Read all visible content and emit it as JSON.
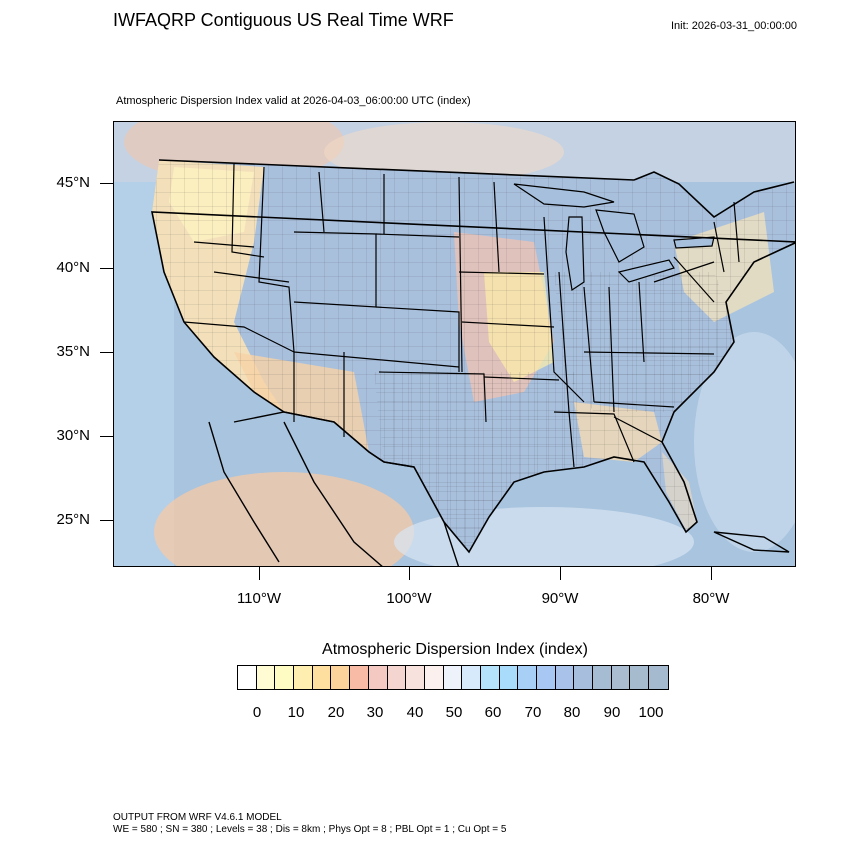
{
  "header": {
    "title": "IWFAQRP Contiguous US Real Time WRF",
    "init": "Init: 2026-03-31_00:00:00",
    "subtitle": "Atmospheric Dispersion Index valid at 2026-04-03_06:00:00 UTC   (index)"
  },
  "map": {
    "lat_labels": [
      "45°N",
      "40°N",
      "35°N",
      "30°N",
      "25°N"
    ],
    "lon_labels": [
      "110°W",
      "100°W",
      "90°W",
      "80°W"
    ],
    "colors": {
      "land_low": "#fdf6b8",
      "land_mid": "#f7cf9f",
      "land_high": "#f0b7a6",
      "water": "#a9c4de",
      "ocean_light": "#bcd8f0",
      "border": "#000000"
    }
  },
  "colorbar": {
    "title": "Atmospheric Dispersion Index  (index)",
    "labels": [
      "0",
      "10",
      "20",
      "30",
      "40",
      "50",
      "60",
      "70",
      "80",
      "90",
      "100"
    ],
    "colors": [
      "#ffffff",
      "#fffbd2",
      "#fefcc2",
      "#feefb0",
      "#fedfa0",
      "#fbd39b",
      "#f8bba6",
      "#f4c9c2",
      "#f4d5d0",
      "#f7e2de",
      "#fcf0ee",
      "#eef3fb",
      "#d6eafb",
      "#b6e3fc",
      "#a8dcfa",
      "#a8d0f7",
      "#a8c7f2",
      "#a9c2ea",
      "#a8bedd",
      "#a6bcd3",
      "#a9bcd0",
      "#a7bbcf",
      "#a5b9cf"
    ]
  },
  "footer": {
    "line1": "OUTPUT FROM WRF V4.6.1 MODEL",
    "line2": "WE = 580 ; SN = 380 ; Levels = 38 ; Dis = 8km ; Phys Opt = 8 ; PBL Opt = 1 ; Cu Opt = 5"
  }
}
